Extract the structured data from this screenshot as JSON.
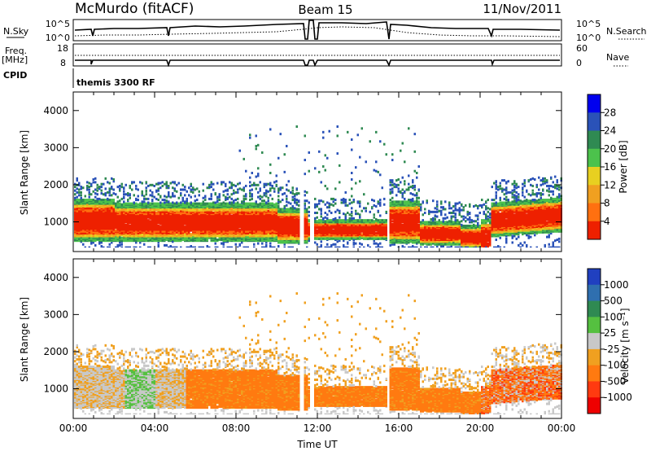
{
  "header": {
    "station": "McMurdo (fitACF)",
    "beam": "Beam 15",
    "date": "11/Nov/2011"
  },
  "status_panel": {
    "left_label_sky": "N.Sky",
    "left_label_freq_line1": "Freq.",
    "left_label_freq_line2": "[MHz]",
    "left_label_cpid": "CPID",
    "right_label_search": "N.Search",
    "right_label_nave": "Nave",
    "sky_ticks": [
      "10^5",
      "10^0"
    ],
    "freq_ticks": [
      "18",
      "8"
    ],
    "nave_ticks": [
      "60",
      "0"
    ],
    "cpid_text": "themis 3300 RF"
  },
  "chart_data": [
    {
      "type": "heatmap",
      "name": "power",
      "ylabel": "Slant Range [km]",
      "ylim": [
        200,
        4500
      ],
      "yticks": [
        "1000",
        "2000",
        "3000",
        "4000"
      ],
      "xlim": [
        0,
        24
      ],
      "colorbar": {
        "label": "Power [dB]",
        "ticks": [
          "4",
          "8",
          "12",
          "16",
          "20",
          "24",
          "28"
        ],
        "colors": [
          "#0000ee",
          "#2a52b8",
          "#2f8a52",
          "#4cc24c",
          "#e8d020",
          "#f0a020",
          "#ff7010",
          "#ee2000"
        ]
      }
    },
    {
      "type": "heatmap",
      "name": "velocity",
      "ylabel": "Slant Range [km]",
      "ylim": [
        200,
        4500
      ],
      "yticks": [
        "1000",
        "2000",
        "3000",
        "4000"
      ],
      "xlim": [
        0,
        24
      ],
      "xticks": [
        "00:00",
        "04:00",
        "08:00",
        "12:00",
        "16:00",
        "20:00",
        "00:00"
      ],
      "xlabel": "Time UT",
      "colorbar": {
        "label": "Velocity [m s⁻¹]",
        "ticks": [
          "1000",
          "500",
          "100",
          "25",
          "-25",
          "-100",
          "-500",
          "-1000"
        ],
        "colors": [
          "#2040c0",
          "#2f6faf",
          "#2f8a52",
          "#55c040",
          "#c8c8c8",
          "#f0a020",
          "#ff7a10",
          "#ff3a10",
          "#ee0000"
        ]
      }
    }
  ]
}
